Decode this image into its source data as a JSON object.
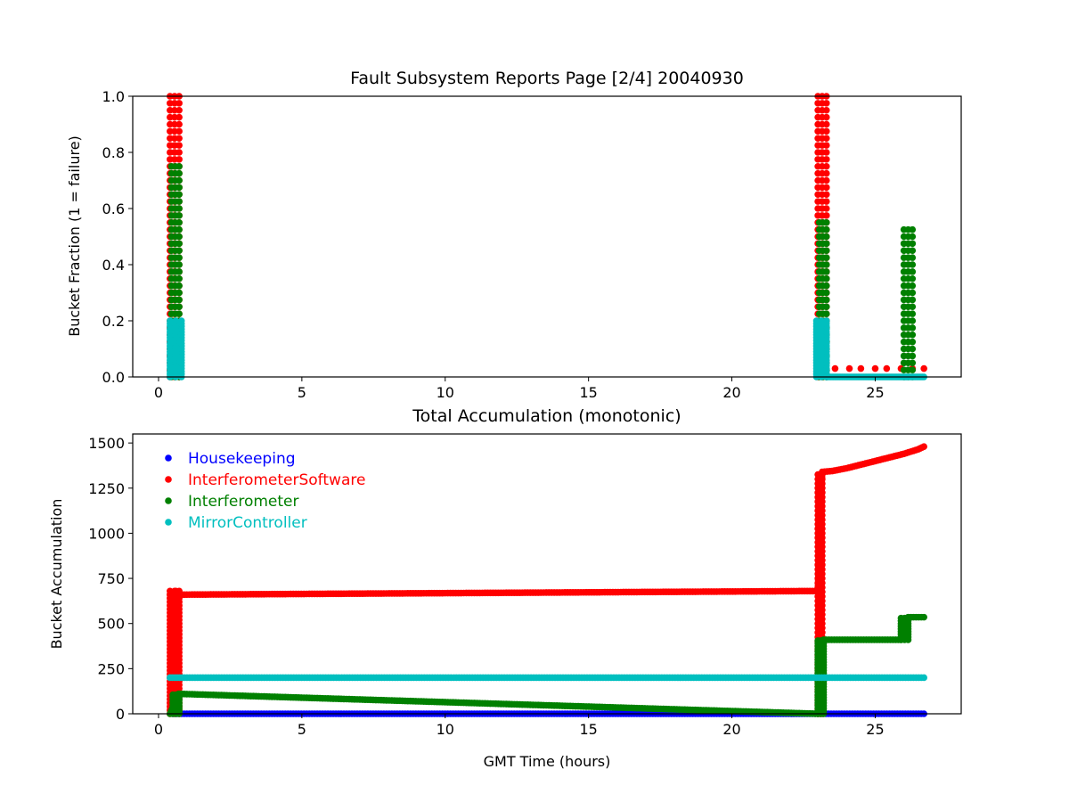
{
  "chart_data": [
    {
      "type": "scatter",
      "title": "Fault Subsystem Reports Page [2/4] 20040930",
      "xlabel": "",
      "ylabel": "Bucket Fraction (1 = failure)",
      "xlim": [
        -0.9,
        28
      ],
      "ylim": [
        0,
        1
      ],
      "xticks": [
        "0",
        "5",
        "10",
        "15",
        "20",
        "25"
      ],
      "yticks": [
        "0.0",
        "0.2",
        "0.4",
        "0.6",
        "0.8",
        "1.0"
      ],
      "grid": false,
      "legend": "none",
      "series": [
        {
          "name": "InterferometerSoftware",
          "color": "#ff0000",
          "segments": [
            {
              "x_start": 0.4,
              "x_end": 0.72,
              "y_min": 0.0,
              "y_max": 1.0,
              "step": 0.025
            },
            {
              "x_start": 23.0,
              "x_end": 23.3,
              "y_min": 0.0,
              "y_max": 1.0,
              "step": 0.025
            }
          ],
          "points": [
            [
              23.6,
              0.03
            ],
            [
              24.1,
              0.03
            ],
            [
              24.5,
              0.03
            ],
            [
              25.0,
              0.03
            ],
            [
              25.4,
              0.03
            ],
            [
              25.9,
              0.03
            ],
            [
              26.3,
              0.03
            ],
            [
              26.7,
              0.03
            ]
          ]
        },
        {
          "name": "Interferometer",
          "color": "#008000",
          "segments": [
            {
              "x_start": 0.45,
              "x_end": 0.72,
              "y_min": 0.0,
              "y_max": 0.75,
              "step": 0.025
            },
            {
              "x_start": 23.05,
              "x_end": 23.3,
              "y_min": 0.0,
              "y_max": 0.55,
              "step": 0.025
            },
            {
              "x_start": 26.0,
              "x_end": 26.3,
              "y_min": 0.0,
              "y_max": 0.53,
              "step": 0.025
            }
          ],
          "points": []
        },
        {
          "name": "MirrorController",
          "color": "#00bfbf",
          "segments": [
            {
              "x_start": 0.4,
              "x_end": 0.8,
              "y_min": 0.0,
              "y_max": 0.2,
              "step": 0.01
            },
            {
              "x_start": 22.95,
              "x_end": 23.3,
              "y_min": 0.0,
              "y_max": 0.2,
              "step": 0.01
            }
          ],
          "baseline": {
            "x_start": 23.3,
            "x_end": 26.7,
            "y": 0.0,
            "step": 0.05
          },
          "points": []
        }
      ]
    },
    {
      "type": "scatter",
      "title": "Total Accumulation (monotonic)",
      "xlabel": "GMT Time (hours)",
      "ylabel": "Bucket Accumulation",
      "xlim": [
        -0.9,
        28
      ],
      "ylim": [
        0,
        1550
      ],
      "xticks": [
        "0",
        "5",
        "10",
        "15",
        "20",
        "25"
      ],
      "yticks": [
        "0",
        "250",
        "500",
        "750",
        "1000",
        "1250",
        "1500"
      ],
      "grid": false,
      "legend": "top-left",
      "series": [
        {
          "name": "Housekeeping",
          "color": "#0000ff",
          "polyline": [
            [
              0.5,
              0
            ],
            [
              0.8,
              0
            ],
            [
              23.0,
              0
            ],
            [
              26.7,
              0
            ]
          ],
          "vspans": []
        },
        {
          "name": "InterferometerSoftware",
          "color": "#ff0000",
          "polyline": [
            [
              0.4,
              660
            ],
            [
              0.6,
              680
            ],
            [
              0.8,
              660
            ],
            [
              23.0,
              680
            ],
            [
              23.15,
              1340
            ],
            [
              23.5,
              1345
            ],
            [
              24.0,
              1360
            ],
            [
              24.5,
              1380
            ],
            [
              25.0,
              1400
            ],
            [
              25.5,
              1420
            ],
            [
              26.0,
              1440
            ],
            [
              26.5,
              1465
            ],
            [
              26.7,
              1480
            ]
          ],
          "vspans": [
            {
              "x_start": 0.4,
              "x_end": 0.72,
              "y_min": 0,
              "y_max": 680,
              "step": 20
            },
            {
              "x_start": 23.0,
              "x_end": 23.15,
              "y_min": 0,
              "y_max": 1340,
              "step": 25
            }
          ]
        },
        {
          "name": "Interferometer",
          "color": "#008000",
          "polyline": [
            [
              0.4,
              0
            ],
            [
              0.7,
              110
            ],
            [
              0.8,
              110
            ],
            [
              23.0,
              0
            ],
            [
              23.2,
              410
            ],
            [
              25.9,
              410
            ],
            [
              26.15,
              535
            ],
            [
              26.7,
              535
            ]
          ],
          "vspans": [
            {
              "x_start": 0.5,
              "x_end": 0.72,
              "y_min": 0,
              "y_max": 110,
              "step": 15
            },
            {
              "x_start": 23.0,
              "x_end": 23.2,
              "y_min": 0,
              "y_max": 410,
              "step": 15
            },
            {
              "x_start": 25.9,
              "x_end": 26.15,
              "y_min": 410,
              "y_max": 535,
              "step": 15
            }
          ]
        },
        {
          "name": "MirrorController",
          "color": "#00bfbf",
          "polyline": [
            [
              0.4,
              200
            ],
            [
              0.9,
              200
            ],
            [
              22.95,
              200
            ],
            [
              26.7,
              200
            ]
          ],
          "vspans": []
        }
      ]
    }
  ]
}
